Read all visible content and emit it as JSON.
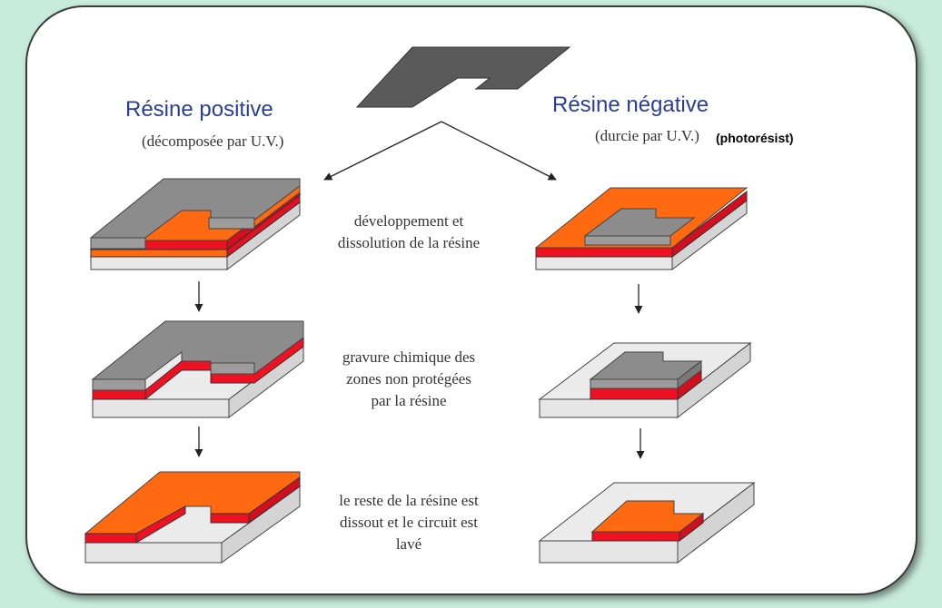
{
  "positive": {
    "title": "Résine positive",
    "subtitle": "(décomposée par U.V.)"
  },
  "negative": {
    "title": "Résine négative",
    "subtitle": "(durcie par U.V.)",
    "extra": "(photorésist)"
  },
  "steps": [
    {
      "lines": [
        "développement et",
        "dissolution de la résine"
      ]
    },
    {
      "lines": [
        "gravure chimique des",
        "zones non protégées",
        "par la résine"
      ]
    },
    {
      "lines": [
        "le reste de la résine est",
        "dissout et le circuit est",
        "lavé"
      ]
    }
  ],
  "colors": {
    "background": "#c8ecdc",
    "mask": "#5a5a5a",
    "resist": "#8c8c8c",
    "copper": "#ff6a10",
    "metal_layer": "#ee1122",
    "substrate": "#e6e6e6"
  }
}
